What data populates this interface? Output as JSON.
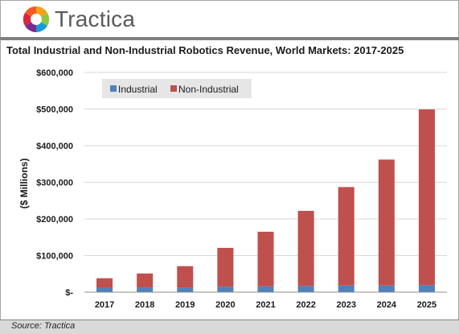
{
  "header": {
    "brand_name": "Tractica",
    "logo_icon": "tractica-pinwheel-logo-icon"
  },
  "footer": {
    "source": "Source: Tractica"
  },
  "colors": {
    "industrial": "#4f81bd",
    "non_industrial": "#c0504d",
    "gridline": "#d9d9d9",
    "legend_bg": "#e6e6e6"
  },
  "chart_data": {
    "type": "bar",
    "stacked": true,
    "title": "Total Industrial and Non-Industrial Robotics Revenue, World Markets: 2017-2025",
    "xlabel": "",
    "ylabel": "($ Millions)",
    "ylim": [
      0,
      600000
    ],
    "y_ticks": [
      "$-",
      "$100,000",
      "$200,000",
      "$300,000",
      "$400,000",
      "$500,000",
      "$600,000"
    ],
    "y_tick_values": [
      0,
      100000,
      200000,
      300000,
      400000,
      500000,
      600000
    ],
    "grid": true,
    "legend_position": "top-left",
    "categories": [
      "2017",
      "2018",
      "2019",
      "2020",
      "2021",
      "2022",
      "2023",
      "2024",
      "2025"
    ],
    "series": [
      {
        "name": "Industrial",
        "values": [
          12000,
          13000,
          13000,
          15000,
          16000,
          17000,
          18000,
          18000,
          19000
        ]
      },
      {
        "name": "Non-Industrial",
        "values": [
          26000,
          38000,
          58000,
          106000,
          149000,
          205000,
          269000,
          344000,
          480000
        ]
      }
    ]
  }
}
